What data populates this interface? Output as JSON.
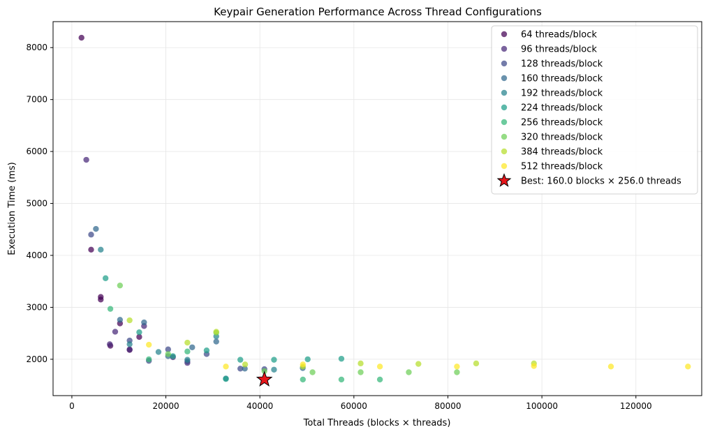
{
  "chart_data": {
    "type": "scatter",
    "title": "Keypair Generation Performance Across Thread Configurations",
    "xlabel": "Total Threads (blocks × threads)",
    "ylabel": "Execution Time (ms)",
    "xlim": [
      -4000,
      134000
    ],
    "ylim": [
      1300,
      8500
    ],
    "xticks": [
      0,
      20000,
      40000,
      60000,
      80000,
      100000,
      120000
    ],
    "xtick_labels": [
      "0",
      "20000",
      "40000",
      "60000",
      "80000",
      "100000",
      "120000"
    ],
    "yticks": [
      2000,
      3000,
      4000,
      5000,
      6000,
      7000,
      8000
    ],
    "ytick_labels": [
      "2000",
      "3000",
      "4000",
      "5000",
      "6000",
      "7000",
      "8000"
    ],
    "grid": true,
    "legend_position": "top-right",
    "series": [
      {
        "name": "64 threads/block",
        "color": "#440154",
        "points": [
          [
            2048,
            8190
          ],
          [
            4096,
            4110
          ],
          [
            6144,
            3150
          ],
          [
            6144,
            3200
          ],
          [
            8192,
            2260
          ],
          [
            10240,
            2690
          ],
          [
            12288,
            2180
          ],
          [
            14336,
            2430
          ]
        ]
      },
      {
        "name": "96 threads/block",
        "color": "#482878",
        "points": [
          [
            3072,
            5840
          ],
          [
            9216,
            2530
          ],
          [
            12288,
            2190
          ],
          [
            15360,
            2640
          ],
          [
            24576,
            1930
          ],
          [
            21504,
            2040
          ],
          [
            8064,
            2290
          ]
        ]
      },
      {
        "name": "128 threads/block",
        "color": "#3e4989",
        "points": [
          [
            4096,
            4400
          ],
          [
            12288,
            2360
          ],
          [
            16384,
            1970
          ],
          [
            20480,
            2190
          ],
          [
            24576,
            1960
          ],
          [
            28672,
            2100
          ],
          [
            35840,
            1820
          ],
          [
            40960,
            1810
          ]
        ]
      },
      {
        "name": "160 threads/block",
        "color": "#31688e",
        "points": [
          [
            5120,
            4510
          ],
          [
            10240,
            2760
          ],
          [
            15360,
            2710
          ],
          [
            20480,
            2060
          ],
          [
            25600,
            2230
          ],
          [
            30720,
            2340
          ],
          [
            36800,
            1820
          ],
          [
            49120,
            1830
          ]
        ]
      },
      {
        "name": "192 threads/block",
        "color": "#26828e",
        "points": [
          [
            6144,
            4110
          ],
          [
            12288,
            2290
          ],
          [
            18432,
            2140
          ],
          [
            24576,
            1990
          ],
          [
            30720,
            2440
          ],
          [
            32768,
            1630
          ],
          [
            43008,
            1800
          ]
        ]
      },
      {
        "name": "224 threads/block",
        "color": "#1f9e89",
        "points": [
          [
            7168,
            3560
          ],
          [
            14336,
            2520
          ],
          [
            21504,
            2060
          ],
          [
            28672,
            2170
          ],
          [
            32768,
            1620
          ],
          [
            35840,
            1990
          ],
          [
            43008,
            1990
          ],
          [
            50176,
            2000
          ],
          [
            57344,
            2010
          ]
        ]
      },
      {
        "name": "256 threads/block",
        "color": "#35b779",
        "points": [
          [
            8192,
            2970
          ],
          [
            16384,
            2000
          ],
          [
            24576,
            2150
          ],
          [
            40960,
            1610
          ],
          [
            49152,
            1610
          ],
          [
            57344,
            1610
          ],
          [
            65536,
            1610
          ]
        ]
      },
      {
        "name": "320 threads/block",
        "color": "#6ece58",
        "points": [
          [
            10240,
            3420
          ],
          [
            20480,
            2100
          ],
          [
            30720,
            2510
          ],
          [
            40960,
            1770
          ],
          [
            51200,
            1750
          ],
          [
            61440,
            1750
          ],
          [
            71680,
            1750
          ],
          [
            81920,
            1750
          ]
        ]
      },
      {
        "name": "384 threads/block",
        "color": "#b5de2b",
        "points": [
          [
            12288,
            2750
          ],
          [
            24576,
            2320
          ],
          [
            30720,
            2530
          ],
          [
            36864,
            1900
          ],
          [
            49152,
            1860
          ],
          [
            61440,
            1920
          ],
          [
            73728,
            1910
          ],
          [
            86016,
            1920
          ],
          [
            98304,
            1920
          ]
        ]
      },
      {
        "name": "512 threads/block",
        "color": "#fde725",
        "points": [
          [
            16384,
            2280
          ],
          [
            32768,
            1860
          ],
          [
            49152,
            1900
          ],
          [
            65536,
            1860
          ],
          [
            81920,
            1860
          ],
          [
            98304,
            1870
          ],
          [
            114688,
            1860
          ],
          [
            131072,
            1860
          ]
        ]
      }
    ],
    "best": {
      "label": "Best: 160.0 blocks × 256.0 threads",
      "x": 40960,
      "y": 1610,
      "color": "#e8161b"
    }
  }
}
